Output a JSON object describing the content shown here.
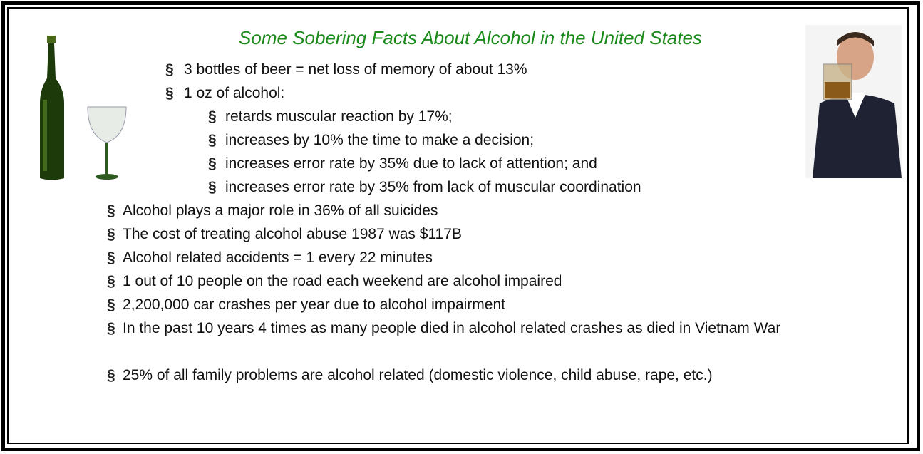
{
  "bullet": "§",
  "title": "Some Sobering Facts About Alcohol in the United States",
  "items": [
    {
      "text": "3 bottles of beer = net loss of memory of about 13%"
    },
    {
      "text": "1 oz of alcohol:",
      "children": [
        "retards muscular reaction by 17%;",
        "increases by 10% the time to make a decision;",
        "increases error rate by 35% due to lack of attention; and",
        "increases error rate by 35% from lack of muscular coordination"
      ]
    },
    {
      "text": "Alcohol plays a major role in 36% of all suicides"
    },
    {
      "text": "The cost of treating alcohol abuse 1987 was $117B"
    },
    {
      "text": "Alcohol related accidents = 1 every 22 minutes"
    },
    {
      "text": "1 out of 10 people on the road each weekend are alcohol impaired"
    },
    {
      "text": "2,200,000 car crashes per year due to alcohol impairment"
    },
    {
      "text": "In the past 10 years 4 times as many people died in alcohol related crashes as died in Vietnam War"
    },
    {
      "text": "25% of all family problems are alcohol related (domestic violence, child abuse, rape, etc.)"
    }
  ]
}
